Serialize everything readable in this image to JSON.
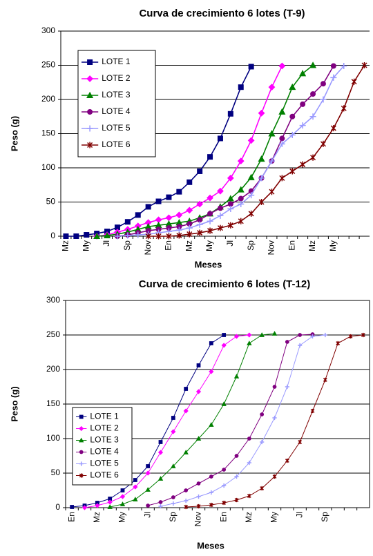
{
  "chart_data": [
    {
      "type": "line",
      "title": "Curva de crecimiento 6 lotes (T-9)",
      "y_label": "Peso (g)",
      "x_label": "Meses",
      "categories": [
        "Mz",
        null,
        "My",
        null,
        "Jl",
        null,
        "Sp",
        null,
        "Nov",
        null,
        "En",
        null,
        "Mz",
        null,
        "My",
        null,
        "Jl",
        null,
        "Sp",
        null,
        "Nov",
        null,
        "En",
        null,
        "Mz",
        null,
        "My",
        null,
        null,
        null
      ],
      "ylim": [
        0,
        300
      ],
      "yticks": [
        0,
        50,
        100,
        150,
        200,
        250,
        300
      ],
      "grid": true,
      "legend": "upper left",
      "series": [
        {
          "name": "LOTE 1",
          "color": "#000080",
          "marker": "square",
          "values": [
            0,
            0,
            2,
            4,
            7,
            13,
            21,
            31,
            43,
            51,
            57,
            65,
            79,
            95,
            116,
            143,
            179,
            218,
            248,
            null,
            null,
            null,
            null,
            null,
            null,
            null,
            null,
            null,
            null,
            null
          ]
        },
        {
          "name": "LOTE 2",
          "color": "#ff00ff",
          "marker": "diamond",
          "values": [
            null,
            null,
            null,
            0,
            2,
            6,
            10,
            15,
            20,
            24,
            27,
            31,
            38,
            47,
            56,
            66,
            85,
            110,
            140,
            180,
            218,
            249,
            null,
            null,
            null,
            null,
            null,
            null,
            null,
            null
          ]
        },
        {
          "name": "LOTE 3",
          "color": "#008000",
          "marker": "triangle",
          "values": [
            null,
            null,
            null,
            0,
            1,
            3,
            6,
            10,
            14,
            16,
            18,
            20,
            22,
            27,
            33,
            43,
            55,
            68,
            86,
            113,
            150,
            182,
            218,
            238,
            250,
            null,
            null,
            null,
            null,
            null
          ]
        },
        {
          "name": "LOTE 4",
          "color": "#800080",
          "marker": "circle",
          "values": [
            null,
            null,
            null,
            null,
            null,
            0,
            2,
            5,
            8,
            10,
            12,
            14,
            18,
            24,
            33,
            41,
            47,
            55,
            66,
            85,
            110,
            143,
            175,
            193,
            208,
            223,
            249,
            null,
            null,
            null
          ]
        },
        {
          "name": "LOTE 5",
          "color": "#9999ff",
          "marker": "plus",
          "values": [
            null,
            null,
            null,
            null,
            null,
            0,
            1,
            2,
            3,
            5,
            7,
            9,
            12,
            17,
            22,
            30,
            40,
            47,
            60,
            85,
            110,
            135,
            148,
            162,
            175,
            200,
            232,
            249,
            null,
            null
          ]
        },
        {
          "name": "LOTE 6",
          "color": "#800000",
          "marker": "star",
          "values": [
            null,
            null,
            null,
            null,
            null,
            null,
            null,
            null,
            0,
            0,
            0,
            1,
            3,
            5,
            8,
            12,
            16,
            22,
            33,
            50,
            65,
            85,
            95,
            105,
            115,
            135,
            158,
            187,
            226,
            250
          ]
        }
      ]
    },
    {
      "type": "line",
      "title": "Curva de crecimiento 6 lotes (T-12)",
      "y_label": "Peso (g)",
      "x_label": "Meses",
      "categories": [
        "En",
        null,
        "Mz",
        null,
        "My",
        null,
        "Jl",
        null,
        "Sp",
        null,
        "Nov",
        null,
        "En",
        null,
        "Mz",
        null,
        "My",
        null,
        "Jl",
        null,
        "Sp",
        null,
        null,
        null
      ],
      "ylim": [
        0,
        300
      ],
      "yticks": [
        0,
        50,
        100,
        150,
        200,
        250,
        300
      ],
      "grid": true,
      "legend": "lower left",
      "series": [
        {
          "name": "LOTE 1",
          "color": "#000080",
          "marker": "square",
          "values": [
            1,
            3,
            7,
            13,
            25,
            40,
            60,
            95,
            130,
            172,
            206,
            238,
            250,
            null,
            null,
            null,
            null,
            null,
            null,
            null,
            null,
            null,
            null,
            null
          ]
        },
        {
          "name": "LOTE 2",
          "color": "#ff00ff",
          "marker": "diamond",
          "values": [
            null,
            0,
            3,
            8,
            16,
            30,
            50,
            80,
            110,
            140,
            168,
            197,
            235,
            248,
            250,
            null,
            null,
            null,
            null,
            null,
            null,
            null,
            null,
            null
          ]
        },
        {
          "name": "LOTE 3",
          "color": "#008000",
          "marker": "triangle",
          "values": [
            null,
            null,
            null,
            1,
            5,
            12,
            26,
            42,
            60,
            80,
            100,
            120,
            150,
            190,
            238,
            250,
            252,
            null,
            null,
            null,
            null,
            null,
            null,
            null
          ]
        },
        {
          "name": "LOTE 4",
          "color": "#800080",
          "marker": "circle",
          "values": [
            null,
            null,
            null,
            null,
            null,
            null,
            3,
            8,
            15,
            25,
            35,
            45,
            55,
            75,
            100,
            135,
            175,
            240,
            250,
            251,
            null,
            null,
            null,
            null
          ]
        },
        {
          "name": "LOTE 5",
          "color": "#9999ff",
          "marker": "plus",
          "values": [
            null,
            null,
            null,
            null,
            null,
            null,
            null,
            2,
            6,
            10,
            16,
            22,
            32,
            45,
            65,
            95,
            130,
            175,
            235,
            248,
            250,
            null,
            null,
            null
          ]
        },
        {
          "name": "LOTE 6",
          "color": "#800000",
          "marker": "star",
          "values": [
            null,
            null,
            null,
            null,
            null,
            null,
            null,
            null,
            null,
            1,
            2,
            4,
            7,
            11,
            17,
            28,
            45,
            68,
            95,
            140,
            185,
            238,
            248,
            250
          ]
        }
      ]
    }
  ]
}
